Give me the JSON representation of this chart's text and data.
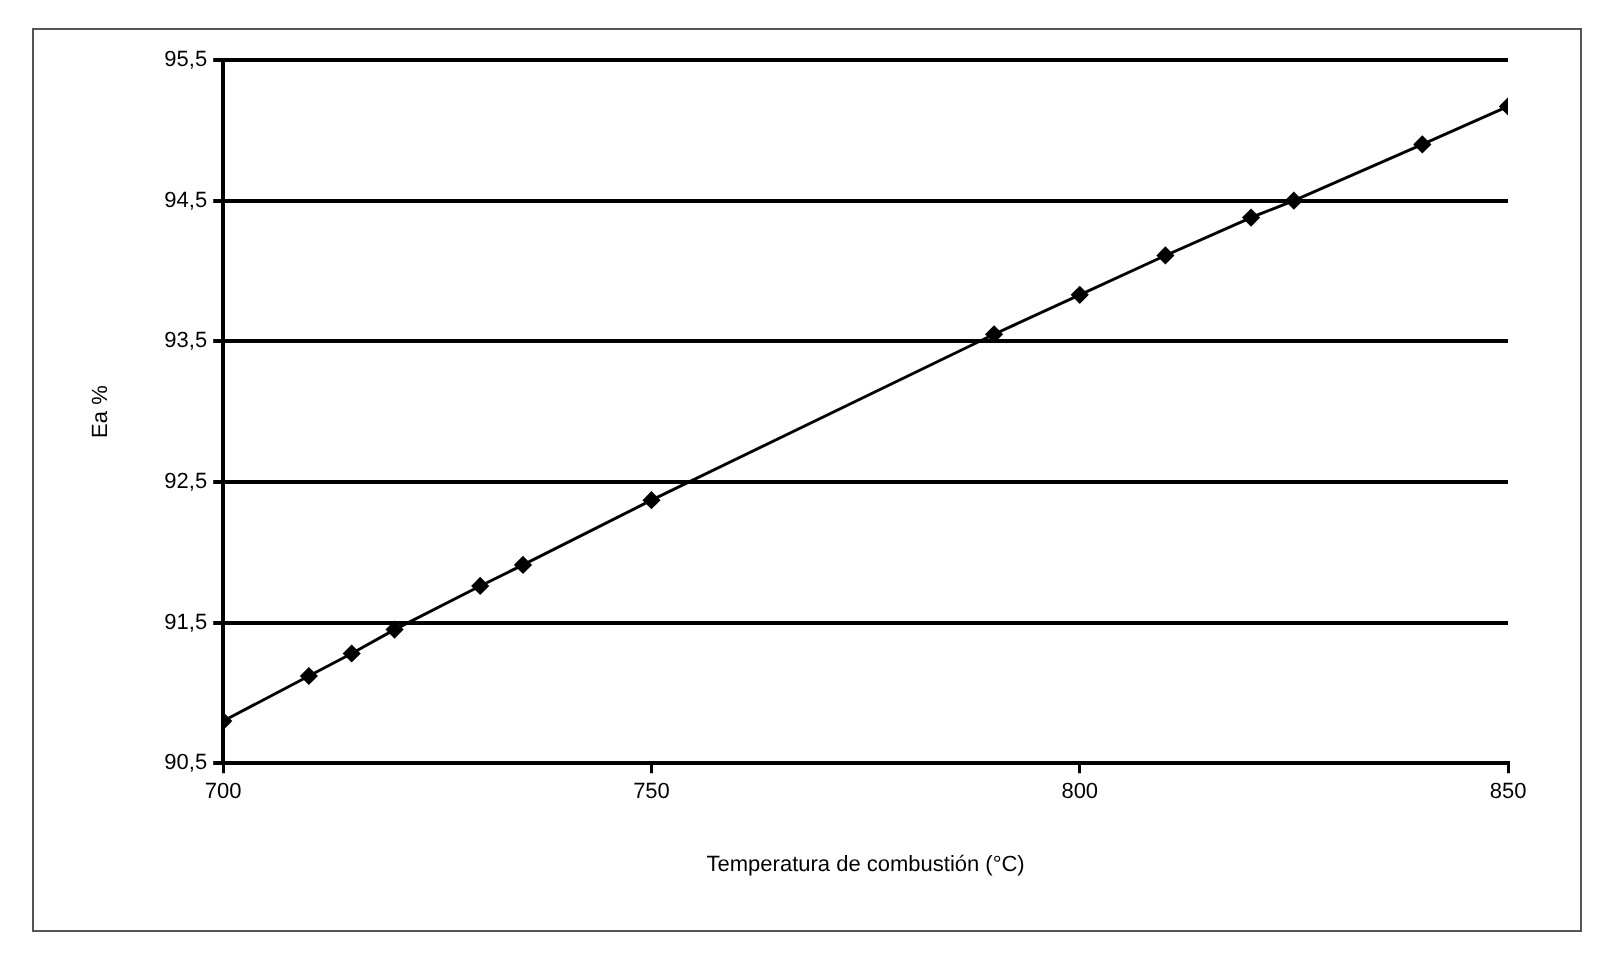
{
  "chart_data": {
    "type": "line",
    "xlabel": "Temperatura de combustión (°C)",
    "ylabel": "Ea %",
    "x": [
      700,
      710,
      715,
      720,
      730,
      735,
      750,
      790,
      800,
      810,
      820,
      825,
      840,
      850
    ],
    "series": [
      {
        "color": "#000000",
        "values": [
          90.8,
          91.12,
          91.28,
          91.45,
          91.76,
          91.91,
          92.37,
          93.55,
          93.83,
          94.11,
          94.38,
          94.5,
          94.9,
          95.17
        ]
      }
    ],
    "xlim": [
      700,
      850
    ],
    "xticks": [
      700,
      750,
      800,
      850
    ],
    "ylim": [
      90.5,
      95.5
    ],
    "yticks": [
      {
        "value": 90.5,
        "label": "90,5"
      },
      {
        "value": 91.5,
        "label": "91,5"
      },
      {
        "value": 92.5,
        "label": "92,5"
      },
      {
        "value": 93.5,
        "label": "93,5"
      },
      {
        "value": 94.5,
        "label": "94,5"
      },
      {
        "value": 95.5,
        "label": "95,5"
      }
    ],
    "grid": "y",
    "marker": "diamond",
    "line_style": "solid",
    "legend": false
  }
}
